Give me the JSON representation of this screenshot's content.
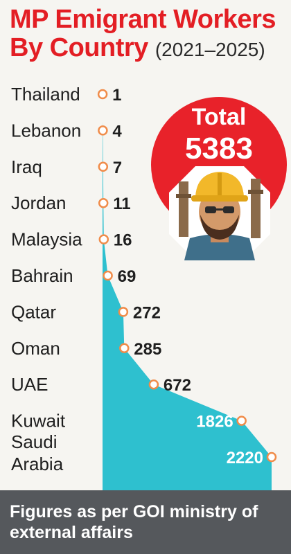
{
  "title": {
    "main": "MP Emigrant Workers By Country",
    "years": "(2021–2025)"
  },
  "total": {
    "label": "Total",
    "value": "5383"
  },
  "footer": {
    "text": "Figures as per GOI ministry of external affairs"
  },
  "colors": {
    "title_red": "#e31e24",
    "badge_red": "#e8222a",
    "area_teal": "#2ec0cf",
    "marker_orange": "#f08c4a",
    "footer_bg": "#55585c"
  },
  "chart_data": {
    "type": "area",
    "title": "MP Emigrant Workers By Country (2021–2025)",
    "categories": [
      "Thailand",
      "Lebanon",
      "Iraq",
      "Jordan",
      "Malaysia",
      "Bahrain",
      "Qatar",
      "Oman",
      "UAE",
      "Kuwait",
      "Saudi Arabia"
    ],
    "category_lines": [
      [
        "Thailand"
      ],
      [
        "Lebanon"
      ],
      [
        "Iraq"
      ],
      [
        "Jordan"
      ],
      [
        "Malaysia"
      ],
      [
        "Bahrain"
      ],
      [
        "Qatar"
      ],
      [
        "Oman"
      ],
      [
        "UAE"
      ],
      [
        "Kuwait"
      ],
      [
        "Saudi",
        "Arabia"
      ]
    ],
    "values": [
      1,
      4,
      7,
      11,
      16,
      69,
      272,
      285,
      672,
      1826,
      2220
    ],
    "value_labels": [
      "1",
      "4",
      "7",
      "11",
      "16",
      "69",
      "272",
      "285",
      "672",
      "1826",
      "2220"
    ],
    "orientation": "horizontal",
    "xlim": [
      0,
      2220
    ]
  }
}
